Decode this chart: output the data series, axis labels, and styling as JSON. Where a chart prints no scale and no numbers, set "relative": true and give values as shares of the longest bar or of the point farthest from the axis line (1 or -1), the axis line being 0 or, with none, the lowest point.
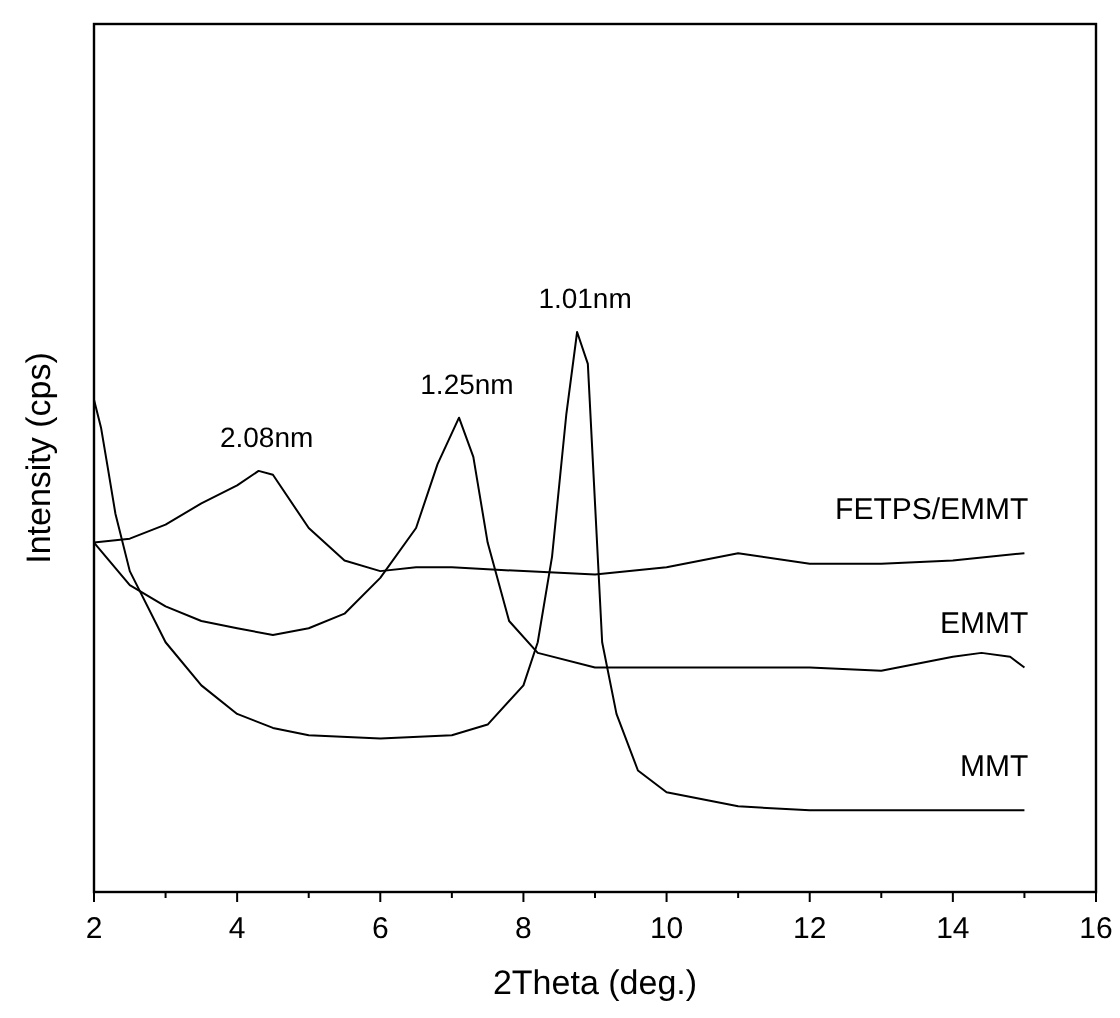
{
  "chart_data": {
    "type": "line",
    "relative": true,
    "xlabel": "2Theta (deg.)",
    "ylabel": "Intensity (cps)",
    "xlim": [
      2,
      16
    ],
    "xticks": [
      2,
      {
        "value": 3,
        "label": null
      },
      4,
      {
        "value": 5,
        "label": null
      },
      6,
      {
        "value": 7,
        "label": null
      },
      8,
      {
        "value": 9,
        "label": null
      },
      10,
      {
        "value": 11,
        "label": null
      },
      12,
      {
        "value": 13,
        "label": null
      },
      14,
      {
        "value": 15,
        "label": null
      },
      16
    ],
    "series": [
      {
        "name": "FETPS/EMMT",
        "color": "#000000",
        "x": [
          2,
          2.5,
          3,
          3.5,
          4,
          4.3,
          4.5,
          5,
          5.5,
          6,
          6.5,
          7,
          8,
          9,
          10,
          11,
          12,
          13,
          14,
          15
        ],
        "values": [
          0.624,
          0.631,
          0.656,
          0.694,
          0.726,
          0.752,
          0.745,
          0.65,
          0.592,
          0.573,
          0.58,
          0.58,
          0.573,
          0.567,
          0.58,
          0.605,
          0.586,
          0.586,
          0.592,
          0.605
        ]
      },
      {
        "name": "EMMT",
        "color": "#000000",
        "x": [
          2,
          2.5,
          3,
          3.5,
          4,
          4.5,
          5,
          5.5,
          6,
          6.5,
          6.8,
          7.1,
          7.3,
          7.5,
          7.8,
          8.2,
          9,
          10,
          11,
          12,
          13,
          14,
          14.4,
          14.8,
          15
        ],
        "values": [
          0.624,
          0.548,
          0.51,
          0.484,
          0.471,
          0.459,
          0.471,
          0.497,
          0.561,
          0.65,
          0.764,
          0.847,
          0.777,
          0.624,
          0.484,
          0.427,
          0.401,
          0.401,
          0.401,
          0.401,
          0.395,
          0.42,
          0.427,
          0.42,
          0.401
        ]
      },
      {
        "name": "MMT",
        "color": "#000000",
        "x": [
          2,
          2.1,
          2.2,
          2.3,
          2.5,
          3,
          3.5,
          4,
          4.5,
          5,
          6,
          7,
          7.5,
          8,
          8.2,
          8.4,
          8.6,
          8.75,
          8.9,
          9.1,
          9.3,
          9.6,
          10,
          11,
          12,
          13,
          14,
          15
        ],
        "values": [
          0.879,
          0.828,
          0.752,
          0.675,
          0.573,
          0.446,
          0.369,
          0.318,
          0.293,
          0.28,
          0.274,
          0.28,
          0.299,
          0.369,
          0.446,
          0.599,
          0.854,
          1,
          0.943,
          0.446,
          0.318,
          0.217,
          0.178,
          0.153,
          0.146,
          0.146,
          0.146,
          0.146
        ]
      }
    ],
    "annotations": [
      {
        "text": "2.08nm",
        "x": 4.3,
        "y": 0.752
      },
      {
        "text": "1.25nm",
        "x": 7.1,
        "y": 0.847
      },
      {
        "text": "1.01nm",
        "x": 8.75,
        "y": 1
      }
    ],
    "grid": false,
    "marker": "none",
    "line_style": "solid"
  }
}
